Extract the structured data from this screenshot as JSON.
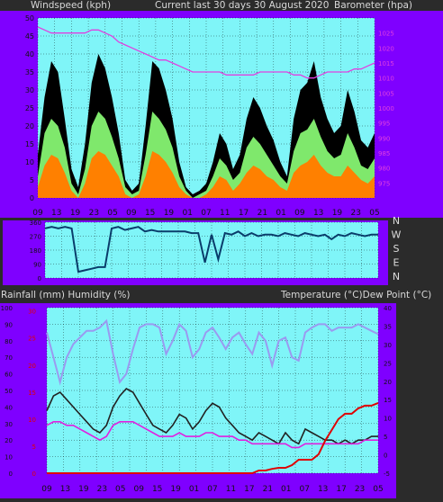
{
  "header": {
    "left_label": "Windspeed (kph)",
    "center_label": "Current last 30 days 30 August 2020",
    "right_label": "Barometer (hpa)"
  },
  "middle": {
    "left_label": "Rainfall (mm)  Humidity (%)",
    "right_label": "Temperature (°C)Dew Point (°C)"
  },
  "compass_labels": [
    "N",
    "W",
    "S",
    "E",
    "N"
  ],
  "colors": {
    "page_bg": "#2b2b2b",
    "purple": "#7f00ff",
    "plot_bg": "#7ff5f8",
    "grid": "#000000",
    "wind_gust": "#000000",
    "wind_avg": "#7fe86c",
    "wind_low": "#ff8000",
    "barometer": "#e040e0",
    "direction": "#0a3d6b",
    "humidity": "#9a9af0",
    "temperature": "#222222",
    "dewpoint": "#e020e0",
    "rainfall": "#e00000"
  },
  "chart_data": [
    {
      "type": "area",
      "title": "Current last 30 days 30 August 2020",
      "ylabel": "Windspeed (kph)",
      "y2label": "Barometer (hpa)",
      "ylim": [
        0,
        50
      ],
      "y2lim": [
        970,
        1030
      ],
      "y_ticks": [
        "0",
        "5",
        "10",
        "15",
        "20",
        "25",
        "30",
        "35",
        "40",
        "45",
        "50"
      ],
      "y2_ticks": [
        "975",
        "980",
        "985",
        "990",
        "995",
        "1000",
        "1005",
        "1010",
        "1015",
        "1020",
        "1025"
      ],
      "x_tick_labels": [
        "09",
        "13",
        "19",
        "23",
        "05",
        "09",
        "15",
        "19",
        "01",
        "07",
        "11",
        "17",
        "21",
        "01",
        "09",
        "13",
        "19",
        "23",
        "05"
      ],
      "series": [
        {
          "name": "gust",
          "values": [
            12,
            28,
            38,
            35,
            22,
            8,
            3,
            15,
            32,
            40,
            36,
            28,
            18,
            5,
            2,
            4,
            20,
            38,
            36,
            30,
            22,
            10,
            3,
            1,
            2,
            4,
            10,
            18,
            15,
            8,
            12,
            22,
            28,
            25,
            20,
            16,
            10,
            6,
            22,
            30,
            32,
            38,
            28,
            22,
            18,
            20,
            30,
            24,
            16,
            14,
            18
          ]
        },
        {
          "name": "average",
          "values": [
            6,
            18,
            22,
            20,
            14,
            4,
            1,
            8,
            20,
            24,
            22,
            17,
            11,
            3,
            1,
            2,
            12,
            24,
            22,
            19,
            14,
            6,
            2,
            0,
            1,
            2,
            6,
            11,
            9,
            5,
            7,
            14,
            17,
            15,
            12,
            9,
            6,
            4,
            13,
            18,
            19,
            22,
            17,
            13,
            11,
            12,
            18,
            14,
            9,
            8,
            11
          ]
        },
        {
          "name": "low",
          "values": [
            3,
            9,
            12,
            11,
            7,
            2,
            0,
            4,
            11,
            13,
            12,
            9,
            6,
            1,
            0,
            1,
            6,
            13,
            12,
            10,
            7,
            3,
            1,
            0,
            0,
            1,
            3,
            6,
            5,
            2,
            4,
            7,
            9,
            8,
            6,
            5,
            3,
            2,
            7,
            9,
            10,
            12,
            9,
            7,
            6,
            6,
            9,
            7,
            5,
            4,
            6
          ]
        },
        {
          "name": "barometer",
          "values": [
            1027,
            1026,
            1025,
            1025,
            1025,
            1025,
            1025,
            1025,
            1026,
            1026,
            1025,
            1024,
            1022,
            1021,
            1020,
            1019,
            1018,
            1017,
            1016,
            1016,
            1015,
            1014,
            1013,
            1012,
            1012,
            1012,
            1012,
            1012,
            1011,
            1011,
            1011,
            1011,
            1011,
            1012,
            1012,
            1012,
            1012,
            1012,
            1011,
            1011,
            1010,
            1010,
            1011,
            1012,
            1012,
            1012,
            1012,
            1013,
            1013,
            1014,
            1015
          ]
        }
      ]
    },
    {
      "type": "line",
      "ylabel": "Wind direction",
      "compass_labels": [
        "N",
        "W",
        "S",
        "E",
        "N"
      ],
      "x_tick_labels": [],
      "series": [
        {
          "name": "direction",
          "values": [
            320,
            330,
            320,
            330,
            320,
            40,
            50,
            60,
            70,
            70,
            320,
            330,
            310,
            320,
            330,
            300,
            310,
            300,
            300,
            300,
            300,
            300,
            290,
            290,
            100,
            280,
            120,
            290,
            280,
            300,
            270,
            290,
            270,
            280,
            280,
            270,
            290,
            280,
            270,
            290,
            280,
            270,
            280,
            250,
            280,
            270,
            290,
            280,
            270,
            280,
            280
          ]
        }
      ]
    },
    {
      "type": "line",
      "ylabel": "Rainfall (mm)  Humidity (%)",
      "y2label": "Temperature (°C)Dew Point (°C)",
      "ylim": [
        0,
        100
      ],
      "y2lim": [
        -5,
        40
      ],
      "y_ticks": [
        "0",
        "10",
        "20",
        "30",
        "40",
        "50",
        "60",
        "70",
        "80",
        "90",
        "100"
      ],
      "rain_ticks": [
        "0",
        "5",
        "10",
        "15",
        "20",
        "25",
        "30"
      ],
      "y2_ticks": [
        "-5",
        "0",
        "5",
        "10",
        "15",
        "20",
        "25",
        "30",
        "35",
        "40"
      ],
      "x_tick_labels": [
        "09",
        "13",
        "19",
        "23",
        "05",
        "09",
        "15",
        "19",
        "01",
        "07",
        "11",
        "17",
        "21",
        "01",
        "07",
        "13",
        "17",
        "23",
        "05"
      ],
      "series": [
        {
          "name": "humidity",
          "values": [
            85,
            70,
            55,
            70,
            78,
            82,
            86,
            86,
            88,
            92,
            72,
            55,
            60,
            75,
            88,
            90,
            90,
            88,
            72,
            80,
            90,
            86,
            70,
            75,
            85,
            88,
            82,
            75,
            82,
            85,
            78,
            72,
            85,
            80,
            65,
            80,
            82,
            70,
            68,
            85,
            88,
            90,
            90,
            86,
            88,
            88,
            88,
            90,
            88,
            86,
            84
          ]
        },
        {
          "name": "temperature",
          "values": [
            12,
            16,
            17,
            15,
            13,
            11,
            9,
            7,
            6,
            8,
            13,
            16,
            18,
            17,
            14,
            11,
            8,
            7,
            6,
            8,
            11,
            10,
            7,
            9,
            12,
            14,
            13,
            10,
            8,
            6,
            5,
            4,
            6,
            5,
            4,
            3,
            6,
            4,
            3,
            7,
            6,
            5,
            4,
            4,
            3,
            4,
            3,
            4,
            4,
            5,
            5
          ]
        },
        {
          "name": "dewpoint",
          "values": [
            8,
            9,
            9,
            8,
            8,
            7,
            6,
            5,
            4,
            5,
            8,
            9,
            9,
            9,
            8,
            7,
            6,
            5,
            5,
            5,
            6,
            5,
            5,
            5,
            6,
            6,
            5,
            5,
            5,
            4,
            4,
            3,
            3,
            3,
            3,
            3,
            3,
            2,
            2,
            3,
            3,
            3,
            3,
            3,
            3,
            3,
            3,
            3,
            4,
            4,
            4
          ]
        },
        {
          "name": "rainfall",
          "values": [
            0,
            0,
            0,
            0,
            0,
            0,
            0,
            0,
            0,
            0,
            0,
            0,
            0,
            0,
            0,
            0,
            0,
            0,
            0,
            0,
            0,
            0,
            0,
            0,
            0,
            0,
            0,
            0,
            0,
            0,
            0,
            0,
            0.5,
            0.5,
            0.8,
            1.0,
            1.0,
            1.5,
            2.5,
            2.5,
            2.5,
            3.5,
            6.0,
            8.0,
            10.0,
            11.0,
            11.0,
            12.0,
            12.5,
            12.5,
            13.0
          ]
        }
      ]
    }
  ]
}
